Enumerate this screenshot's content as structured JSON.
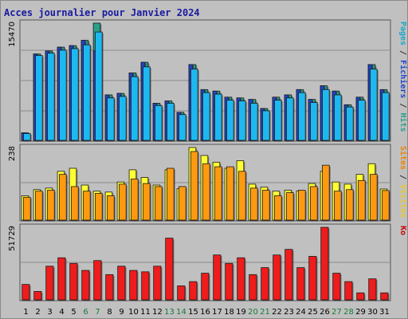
{
  "chart_data": {
    "type": "bar",
    "title": "Acces journalier pour Janvier 2024",
    "categories": [
      "1",
      "2",
      "3",
      "4",
      "5",
      "6",
      "7",
      "8",
      "9",
      "10",
      "11",
      "12",
      "13",
      "14",
      "15",
      "16",
      "17",
      "18",
      "19",
      "20",
      "21",
      "22",
      "23",
      "24",
      "25",
      "26",
      "27",
      "28",
      "29",
      "30",
      "31"
    ],
    "weekend_days": [
      "6",
      "7",
      "13",
      "14",
      "20",
      "21",
      "27",
      "28"
    ],
    "panels": [
      {
        "id": "top",
        "max_label": "15470",
        "ylim": [
          0,
          15470
        ],
        "right_labels": [
          {
            "text": "Pages",
            "color": "#19a8c8"
          },
          {
            "text": " / ",
            "color": "#333333"
          },
          {
            "text": "Fichiers",
            "color": "#2244cc"
          },
          {
            "text": " / ",
            "color": "#333333"
          },
          {
            "text": "Hits",
            "color": "#2aa088"
          }
        ],
        "series": [
          {
            "key": "hits",
            "color": "#2aa088",
            "values": [
              1000,
              11400,
              11800,
              12300,
              12500,
              13200,
              15470,
              6000,
              6200,
              8900,
              10300,
              4900,
              5200,
              3700,
              10000,
              6700,
              6500,
              5700,
              5600,
              5400,
              4200,
              5700,
              6000,
              6700,
              5400,
              7200,
              6500,
              4700,
              5700,
              10000,
              6700
            ]
          },
          {
            "key": "files",
            "color": "#2244cc",
            "values": [
              1000,
              11400,
              11800,
              12300,
              12500,
              13200,
              11800,
              6000,
              6200,
              8900,
              10300,
              4900,
              5200,
              3700,
              10000,
              6700,
              6500,
              5700,
              5600,
              5400,
              4200,
              5700,
              6000,
              6700,
              5400,
              7200,
              6500,
              4700,
              5700,
              10000,
              6700
            ]
          },
          {
            "key": "pages",
            "color": "#1eb8f0",
            "values": [
              900,
              11200,
              11500,
              11900,
              12100,
              12600,
              14300,
              5600,
              5800,
              8400,
              9700,
              4600,
              4900,
              3400,
              9400,
              6300,
              6100,
              5300,
              5200,
              4900,
              3900,
              5300,
              5600,
              6300,
              5000,
              6700,
              6000,
              4400,
              5300,
              9400,
              6300
            ]
          }
        ]
      },
      {
        "id": "middle",
        "max_label": "238",
        "ylim": [
          0,
          238
        ],
        "right_labels": [
          {
            "text": "Sites",
            "color": "#f08000"
          },
          {
            "text": " / ",
            "color": "#333333"
          },
          {
            "text": "Visites",
            "color": "#e8c830"
          }
        ],
        "series": [
          {
            "key": "visits",
            "color": "#ffff33",
            "values": [
              80,
              100,
              105,
              160,
              170,
              115,
              95,
              92,
              125,
              165,
              140,
              115,
              165,
              103,
              238,
              212,
              190,
              170,
              195,
              118,
              108,
              95,
              98,
              96,
              120,
              160,
              125,
              118,
              150,
              185,
              102
            ]
          },
          {
            "key": "sites",
            "color": "#ff9a10",
            "values": [
              75,
              95,
              98,
              150,
              110,
              95,
              88,
              80,
              118,
              135,
              120,
              110,
              170,
              110,
              225,
              185,
              175,
              175,
              160,
              105,
              98,
              80,
              90,
              98,
              110,
              180,
              95,
              100,
              130,
              150,
              97
            ]
          }
        ]
      },
      {
        "id": "bottom",
        "max_label": "51729",
        "ylim": [
          0,
          51729
        ],
        "right_labels": [
          {
            "text": "Ko",
            "color": "#cc0000"
          }
        ],
        "series": [
          {
            "key": "kbytes",
            "color": "#ee1c1c",
            "values": [
              11000,
              6000,
              24000,
              30000,
              26000,
              21000,
              28000,
              18000,
              24000,
              21000,
              20000,
              24000,
              44000,
              10000,
              13000,
              19000,
              32000,
              26000,
              30000,
              18000,
              23000,
              32000,
              36000,
              23000,
              31000,
              51729,
              19000,
              13000,
              5000,
              15000,
              5000
            ]
          }
        ]
      }
    ]
  }
}
